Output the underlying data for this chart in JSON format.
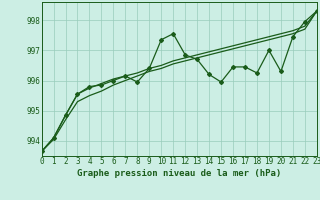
{
  "title": "Graphe pression niveau de la mer (hPa)",
  "bg_color": "#cceee4",
  "grid_color": "#99ccbb",
  "line_color": "#1a5c1a",
  "x_values": [
    0,
    1,
    2,
    3,
    4,
    5,
    6,
    7,
    8,
    9,
    10,
    11,
    12,
    13,
    14,
    15,
    16,
    17,
    18,
    19,
    20,
    21,
    22,
    23
  ],
  "y_main": [
    993.65,
    994.1,
    994.85,
    995.55,
    995.8,
    995.85,
    996.0,
    996.15,
    995.95,
    996.4,
    997.35,
    997.55,
    996.85,
    996.7,
    996.2,
    995.95,
    996.45,
    996.45,
    996.25,
    997.0,
    996.3,
    997.45,
    997.95,
    998.3
  ],
  "y_trend1": [
    993.65,
    994.1,
    994.85,
    995.55,
    995.75,
    995.9,
    996.05,
    996.15,
    996.25,
    996.4,
    996.5,
    996.65,
    996.75,
    996.85,
    996.95,
    997.05,
    997.15,
    997.25,
    997.35,
    997.45,
    997.55,
    997.65,
    997.8,
    998.3
  ],
  "y_trend2": [
    993.65,
    994.05,
    994.7,
    995.3,
    995.5,
    995.65,
    995.85,
    996.0,
    996.15,
    996.3,
    996.4,
    996.55,
    996.65,
    996.75,
    996.85,
    996.95,
    997.05,
    997.15,
    997.25,
    997.35,
    997.45,
    997.55,
    997.7,
    998.3
  ],
  "ylim": [
    993.5,
    998.6
  ],
  "yticks": [
    994,
    995,
    996,
    997,
    998
  ],
  "xlim": [
    0,
    23
  ],
  "tick_fontsize": 5.5,
  "title_fontsize": 6.5
}
